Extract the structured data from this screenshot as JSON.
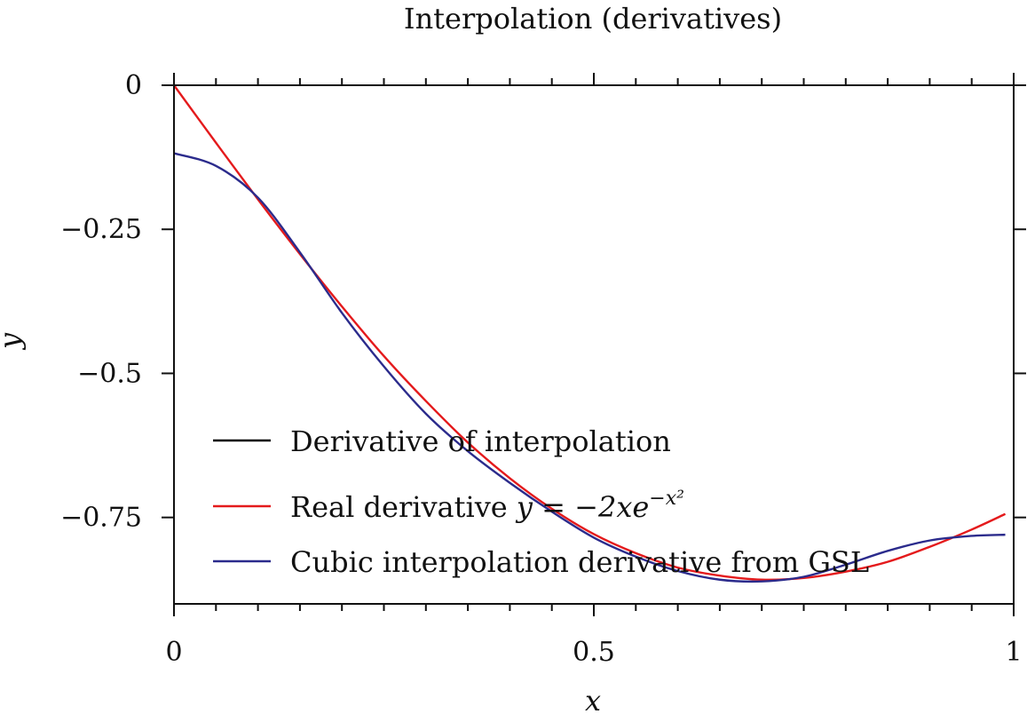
{
  "chart_data": {
    "type": "line",
    "title": "Interpolation (derivatives)",
    "xlabel": "x",
    "ylabel": "y",
    "xlim": [
      0,
      1
    ],
    "ylim": [
      -0.9,
      0
    ],
    "x_ticks": [
      {
        "value": 0,
        "label": "0"
      },
      {
        "value": 0.5,
        "label": "0.5"
      },
      {
        "value": 1,
        "label": "1"
      }
    ],
    "y_ticks": [
      {
        "value": 0,
        "label": "0"
      },
      {
        "value": -0.25,
        "label": "−0.25"
      },
      {
        "value": -0.5,
        "label": "−0.5"
      },
      {
        "value": -0.75,
        "label": "−0.75"
      }
    ],
    "x_minor_step": 0.05,
    "legend_placement": "lower-left",
    "series": [
      {
        "name": "Derivative of interpolation",
        "color": "#000000",
        "x": [],
        "y": []
      },
      {
        "name": "Real derivative y = −2xe^(−x²)",
        "color": "#e41a1c",
        "x": [
          0,
          0.05,
          0.1,
          0.15,
          0.2,
          0.25,
          0.3,
          0.35,
          0.4,
          0.45,
          0.5,
          0.55,
          0.6,
          0.65,
          0.7,
          0.75,
          0.8,
          0.85,
          0.9,
          0.95,
          0.99
        ],
        "y": [
          0,
          -0.0998,
          -0.198,
          -0.293,
          -0.384,
          -0.47,
          -0.548,
          -0.62,
          -0.682,
          -0.735,
          -0.779,
          -0.812,
          -0.837,
          -0.851,
          -0.858,
          -0.855,
          -0.844,
          -0.827,
          -0.801,
          -0.771,
          -0.744
        ]
      },
      {
        "name": "Cubic interpolation derivative from GSL",
        "color": "#2b2b8c",
        "x": [
          0,
          0.05,
          0.1,
          0.15,
          0.2,
          0.25,
          0.3,
          0.35,
          0.4,
          0.45,
          0.5,
          0.55,
          0.6,
          0.65,
          0.7,
          0.75,
          0.8,
          0.85,
          0.9,
          0.95,
          0.99
        ],
        "y": [
          -0.118,
          -0.14,
          -0.195,
          -0.29,
          -0.395,
          -0.488,
          -0.57,
          -0.635,
          -0.69,
          -0.74,
          -0.785,
          -0.818,
          -0.843,
          -0.858,
          -0.861,
          -0.853,
          -0.832,
          -0.808,
          -0.79,
          -0.782,
          -0.78
        ]
      }
    ],
    "legend": [
      {
        "label": "Derivative of interpolation",
        "color": "#000000"
      },
      {
        "label": "Real derivative ",
        "math": "y = −2xe",
        "sup": "−x²",
        "color": "#e41a1c"
      },
      {
        "label": "Cubic interpolation derivative from GSL",
        "color": "#2b2b8c"
      }
    ]
  }
}
